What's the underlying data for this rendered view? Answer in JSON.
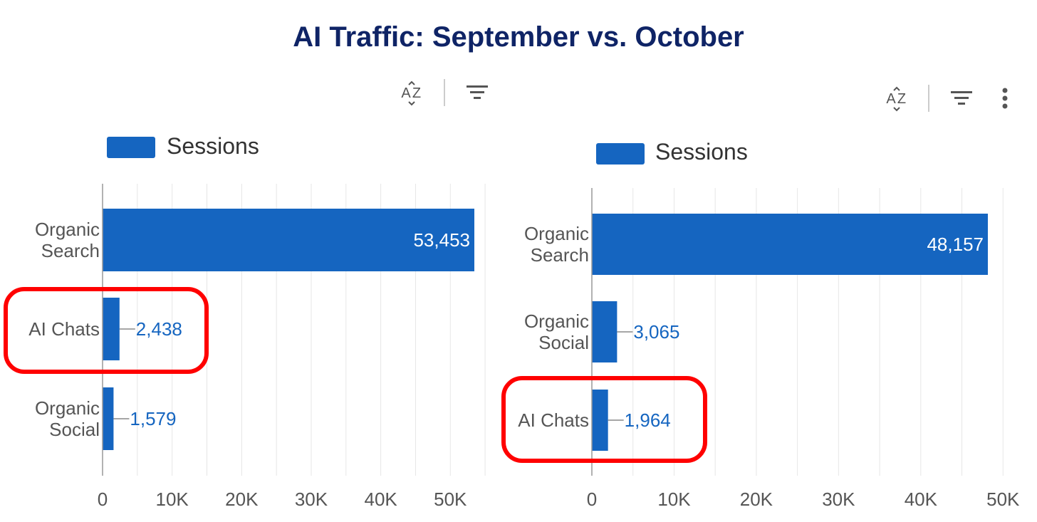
{
  "title": "AI Traffic: September vs. October",
  "colors": {
    "bar": "#1565c0",
    "title": "#0f2466",
    "highlight": "#ff0000",
    "axis_text": "#555555",
    "grid": "#e6e6e6",
    "label_out": "#1565c0",
    "label_in": "#ffffff"
  },
  "toolbar_icons": [
    "sort-az-icon",
    "filter-icon",
    "more-vert-icon"
  ],
  "chart_data": [
    {
      "type": "bar",
      "orientation": "horizontal",
      "legend": {
        "label": "Sessions",
        "position": "top-left"
      },
      "categories": [
        [
          "Organic",
          "Search"
        ],
        [
          "AI Chats"
        ],
        [
          "Organic",
          "Social"
        ]
      ],
      "series": [
        {
          "name": "Sessions",
          "values": [
            53453,
            2438,
            1579
          ]
        }
      ],
      "data_labels": [
        "53,453",
        "2,438",
        "1,579"
      ],
      "xlim": [
        0,
        55000
      ],
      "xticks": [
        0,
        10000,
        20000,
        30000,
        40000,
        50000
      ],
      "xtick_labels": [
        "0",
        "10K",
        "20K",
        "30K",
        "40K",
        "50K"
      ],
      "grid": true,
      "highlighted_category": "AI Chats"
    },
    {
      "type": "bar",
      "orientation": "horizontal",
      "legend": {
        "label": "Sessions",
        "position": "top-left"
      },
      "categories": [
        [
          "Organic",
          "Search"
        ],
        [
          "Organic",
          "Social"
        ],
        [
          "AI Chats"
        ]
      ],
      "series": [
        {
          "name": "Sessions",
          "values": [
            48157,
            3065,
            1964
          ]
        }
      ],
      "data_labels": [
        "48,157",
        "3,065",
        "1,964"
      ],
      "xlim": [
        0,
        50000
      ],
      "xticks": [
        0,
        10000,
        20000,
        30000,
        40000,
        50000
      ],
      "xtick_labels": [
        "0",
        "10K",
        "20K",
        "30K",
        "40K",
        "50K"
      ],
      "grid": true,
      "highlighted_category": "AI Chats"
    }
  ]
}
